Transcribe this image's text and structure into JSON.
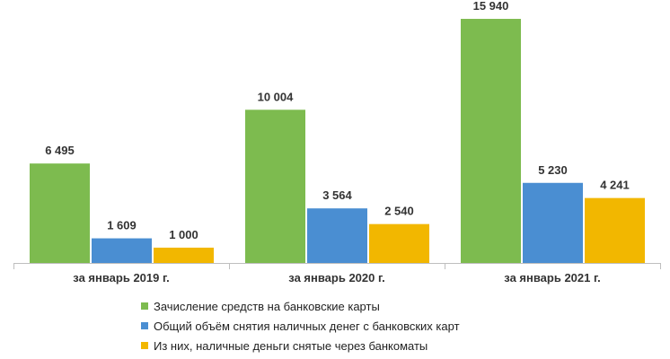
{
  "chart_data": {
    "type": "bar",
    "categories": [
      "за январь 2019 г.",
      "за январь 2020 г.",
      "за январь 2021 г."
    ],
    "series": [
      {
        "name": "Зачисление средств на банковские карты",
        "color": "#7dbb4f",
        "values": [
          6495,
          10004,
          15940
        ],
        "labels": [
          "6 495",
          "10 004",
          "15 940"
        ]
      },
      {
        "name": "Общий  объём снятия наличных денег с банковских карт",
        "color": "#4a8ed2",
        "values": [
          1609,
          3564,
          5230
        ],
        "labels": [
          "1 609",
          "3 564",
          "5 230"
        ]
      },
      {
        "name": "Из них,  наличные деньги снятые через банкоматы",
        "color": "#f2b700",
        "values": [
          1000,
          2540,
          4241
        ],
        "labels": [
          "1 000",
          "2 540",
          "4 241"
        ]
      }
    ],
    "ylim": [
      0,
      16000
    ],
    "grid": false,
    "legend": "bottom"
  }
}
